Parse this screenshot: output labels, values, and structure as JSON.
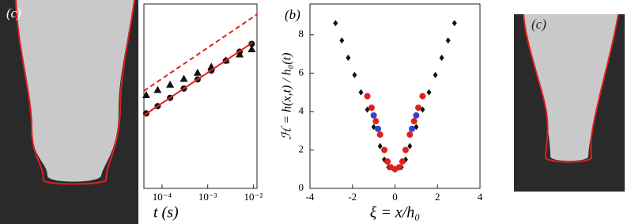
{
  "images": [
    {
      "label": "(c)"
    },
    {
      "label": "(c)"
    }
  ],
  "chart_data": [
    {
      "type": "scatter",
      "xscale": "log",
      "yscale": "log",
      "xlabel": "t (s)",
      "xlim": [
        4e-05,
        0.012
      ],
      "ylim": [
        1e-05,
        0.001
      ],
      "xticks": [
        {
          "value": 0.0001,
          "label": "10⁻⁴"
        },
        {
          "value": 0.001,
          "label": "10⁻³"
        },
        {
          "value": 0.01,
          "label": "10⁻²"
        }
      ],
      "series": [
        {
          "marker": "triangle",
          "color": "#111111",
          "x": [
            4.5e-05,
            8e-05,
            0.00015,
            0.0003,
            0.0006,
            0.0012,
            0.0025,
            0.005,
            0.0092
          ],
          "values": [
            0.000103,
            0.000117,
            0.000134,
            0.000155,
            0.00018,
            0.000209,
            0.000245,
            0.000285,
            0.000324
          ]
        },
        {
          "marker": "circle",
          "color": "#111111",
          "x": [
            4.5e-05,
            8e-05,
            0.00015,
            0.0003,
            0.0006,
            0.0012,
            0.0025,
            0.005,
            0.0092
          ],
          "values": [
            6.5e-05,
            7.8e-05,
            9.6e-05,
            0.000121,
            0.000152,
            0.00019,
            0.000242,
            0.000303,
            0.000369
          ]
        },
        {
          "linestyle": "solid",
          "color": "#e0201b",
          "x": [
            4e-05,
            0.0095
          ],
          "values": [
            6.2e-05,
            0.00038
          ]
        },
        {
          "linestyle": "dashed",
          "color": "#e0201b",
          "x": [
            4e-05,
            0.012
          ],
          "values": [
            0.000114,
            0.00077
          ]
        }
      ]
    },
    {
      "type": "scatter",
      "label": "(b)",
      "xlabel": "ξ = x/h₀",
      "ylabel": "ℋ = h(x,t) / h₀(t)",
      "xlim": [
        -4,
        4
      ],
      "ylim": [
        0,
        9.6
      ],
      "xticks": [
        -4,
        -2,
        0,
        2,
        4
      ],
      "yticks": [
        0,
        2,
        4,
        6,
        8
      ],
      "series": [
        {
          "marker": "diamond",
          "color": "#111111",
          "x": [
            -2.8,
            -2.5,
            -2.2,
            -1.9,
            -1.6,
            -1.3,
            -1.0,
            -0.7,
            -0.5,
            -0.3,
            0,
            0.3,
            0.5,
            0.7,
            1.0,
            1.3,
            1.6,
            1.9,
            2.2,
            2.5,
            2.8
          ],
          "values": [
            8.6,
            7.7,
            6.8,
            5.9,
            5.0,
            4.1,
            3.2,
            2.2,
            1.5,
            1.1,
            1.0,
            1.1,
            1.5,
            2.2,
            3.2,
            4.1,
            5.0,
            5.9,
            6.8,
            7.7,
            8.6
          ]
        },
        {
          "marker": "circle",
          "color": "#e0201b",
          "x": [
            -1.3,
            -1.1,
            -0.9,
            -0.7,
            -0.5,
            -0.35,
            -0.2,
            0,
            0.2,
            0.35,
            0.5,
            0.7,
            0.9,
            1.1,
            1.3
          ],
          "values": [
            4.8,
            4.2,
            3.5,
            2.8,
            2.0,
            1.4,
            1.1,
            1.0,
            1.1,
            1.4,
            2.0,
            2.8,
            3.5,
            4.2,
            4.8
          ]
        },
        {
          "marker": "circle",
          "color": "#3344cc",
          "x": [
            -1.0,
            -0.8,
            0.8,
            1.0
          ],
          "values": [
            3.8,
            3.1,
            3.1,
            3.8
          ]
        }
      ]
    }
  ]
}
